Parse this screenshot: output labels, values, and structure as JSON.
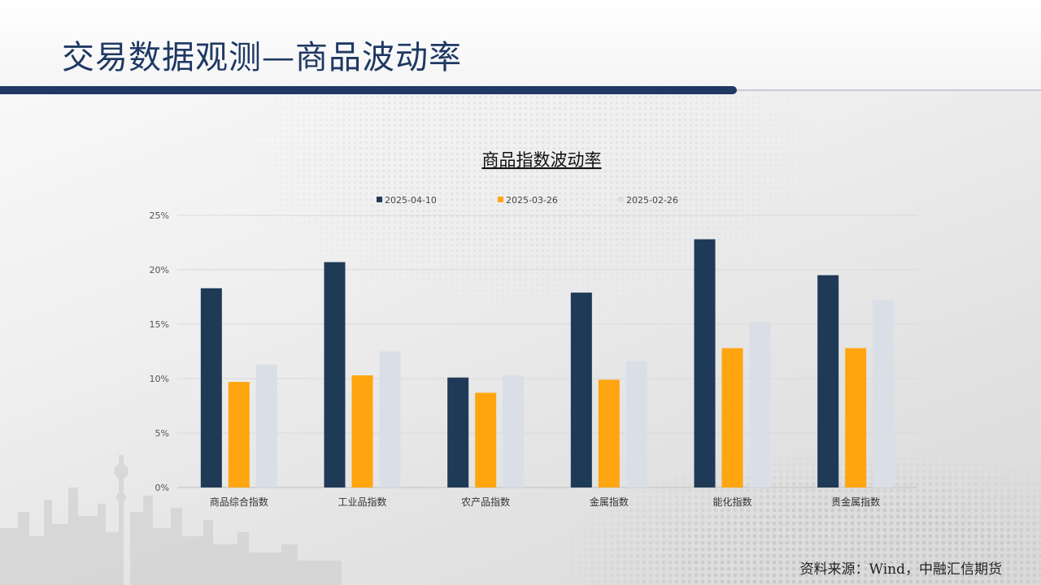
{
  "page": {
    "title": "交易数据观测—商品波动率",
    "source": "资料来源：Wind，中融汇信期货"
  },
  "chart_data": {
    "type": "bar",
    "title": "商品指数波动率",
    "xlabel": "",
    "ylabel": "",
    "categories": [
      "商品综合指数",
      "工业品指数",
      "农产品指数",
      "金属指数",
      "能化指数",
      "贵金属指数"
    ],
    "series": [
      {
        "name": "2025-04-10",
        "color": "#1f3a56",
        "values": [
          18.3,
          20.7,
          10.1,
          17.9,
          22.8,
          19.5
        ]
      },
      {
        "name": "2025-03-26",
        "color": "#ffa50f",
        "values": [
          9.7,
          10.3,
          8.7,
          9.9,
          12.8,
          12.8
        ]
      },
      {
        "name": "2025-02-26",
        "color": "#d9dee7",
        "values": [
          11.3,
          12.5,
          10.3,
          11.6,
          15.2,
          17.2
        ]
      }
    ],
    "yticks": [
      "0%",
      "5%",
      "10%",
      "15%",
      "20%",
      "25%"
    ],
    "ylim": [
      0,
      25
    ],
    "grid": true,
    "legend": "top-center"
  }
}
